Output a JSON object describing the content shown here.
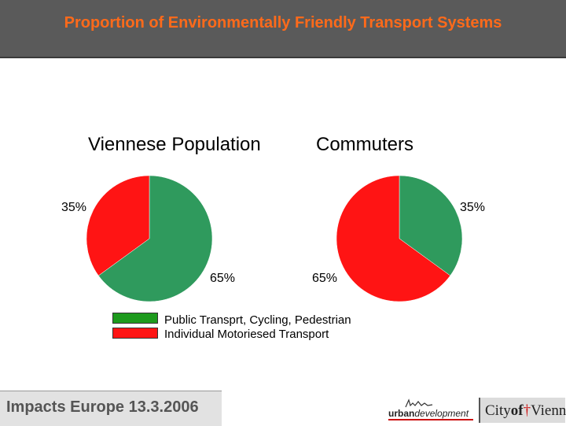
{
  "header": {
    "title": "Proportion of Environmentally Friendly Transport Systems"
  },
  "chart_data": [
    {
      "type": "pie",
      "title": "Viennese Population",
      "labels": [
        "Public Transprt, Cycling, Pedestrian",
        "Individual Motoriesed Transport"
      ],
      "values": [
        65,
        35
      ],
      "data_labels": [
        "65%",
        "35%"
      ],
      "colors": [
        "#2f9a5d",
        "#ff1414"
      ]
    },
    {
      "type": "pie",
      "title": "Commuters",
      "labels": [
        "Public Transprt, Cycling, Pedestrian",
        "Individual Motoriesed Transport"
      ],
      "values": [
        35,
        65
      ],
      "data_labels": [
        "35%",
        "65%"
      ],
      "colors": [
        "#2f9a5d",
        "#ff1414"
      ]
    }
  ],
  "legend": [
    {
      "label": "Public Transprt, Cycling, Pedestrian",
      "color": "#1d9a1d"
    },
    {
      "label": "Individual Motoriesed Transport",
      "color": "#ff1414"
    }
  ],
  "footer": {
    "text": "Impacts Europe 13.3.2006",
    "logo_urban": "urbandevelopment",
    "logo_city": "City of Vienna"
  }
}
